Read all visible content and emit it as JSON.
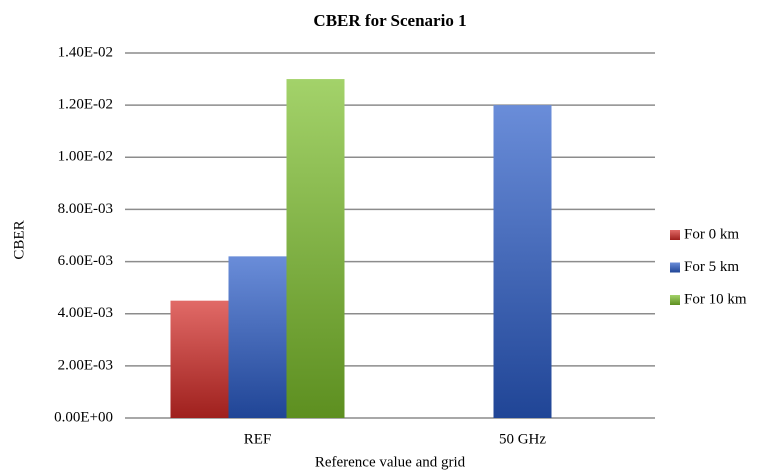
{
  "chart_data": {
    "type": "bar",
    "title": "CBER for Scenario 1",
    "x_label": "Reference value and grid",
    "y_label": "CBER",
    "categories": [
      "REF",
      "50 GHz"
    ],
    "series": [
      {
        "name": "For 0 km",
        "color": "#d42a26",
        "values": [
          0.0045,
          null
        ]
      },
      {
        "name": "For 5 km",
        "color": "#2a5cc8",
        "values": [
          0.0062,
          0.012
        ]
      },
      {
        "name": "For 10 km",
        "color": "#7cbf2a",
        "values": [
          0.013,
          null
        ]
      }
    ],
    "ylim": [
      0,
      0.014
    ],
    "yticks": [
      {
        "value": 0,
        "label": "0.00E+00"
      },
      {
        "value": 0.002,
        "label": "2.00E-03"
      },
      {
        "value": 0.004,
        "label": "4.00E-03"
      },
      {
        "value": 0.006,
        "label": "6.00E-03"
      },
      {
        "value": 0.008,
        "label": "8.00E-03"
      },
      {
        "value": 0.01,
        "label": "1.00E-02"
      },
      {
        "value": 0.012,
        "label": "1.20E-02"
      },
      {
        "value": 0.014,
        "label": "1.40E-02"
      }
    ],
    "grid": true,
    "legend": "right"
  }
}
